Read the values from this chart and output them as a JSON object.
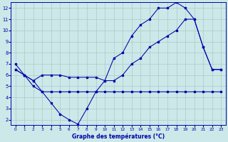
{
  "xlabel": "Graphe des températures (°C)",
  "bg_color": "#cce8e8",
  "grid_color": "#b0c8c8",
  "line_color": "#0000aa",
  "xlim": [
    -0.5,
    23.5
  ],
  "ylim": [
    1.5,
    12.5
  ],
  "xticks": [
    0,
    1,
    2,
    3,
    4,
    5,
    6,
    7,
    8,
    9,
    10,
    11,
    12,
    13,
    14,
    15,
    16,
    17,
    18,
    19,
    20,
    21,
    22,
    23
  ],
  "yticks": [
    2,
    3,
    4,
    5,
    6,
    7,
    8,
    9,
    10,
    11,
    12
  ],
  "curve1_x": [
    0,
    1,
    2,
    3,
    4,
    5,
    6,
    7,
    8,
    9,
    10,
    11,
    12,
    13,
    14,
    15,
    16,
    17,
    18,
    19,
    20,
    21,
    22,
    23
  ],
  "curve1_y": [
    7.0,
    6.0,
    5.0,
    4.5,
    3.5,
    2.5,
    2.0,
    1.6,
    3.0,
    4.5,
    5.5,
    7.5,
    8.0,
    9.5,
    10.5,
    11.0,
    12.0,
    12.0,
    12.5,
    12.0,
    11.0,
    8.5,
    6.5,
    6.5
  ],
  "curve2_x": [
    0,
    1,
    2,
    3,
    4,
    5,
    6,
    7,
    8,
    9,
    10,
    11,
    12,
    13,
    14,
    15,
    16,
    17,
    18,
    19,
    20,
    21,
    22,
    23
  ],
  "curve2_y": [
    6.5,
    6.0,
    5.5,
    6.0,
    6.0,
    6.0,
    5.8,
    5.8,
    5.8,
    5.8,
    5.5,
    5.5,
    6.0,
    7.0,
    7.5,
    8.5,
    9.0,
    9.5,
    10.0,
    11.0,
    11.0,
    8.5,
    6.5,
    6.5
  ],
  "curve3_x": [
    0,
    1,
    2,
    3,
    4,
    5,
    6,
    7,
    8,
    9,
    10,
    11,
    12,
    13,
    14,
    15,
    16,
    17,
    18,
    19,
    20,
    21,
    22,
    23
  ],
  "curve3_y": [
    6.5,
    6.0,
    5.5,
    4.5,
    4.5,
    4.5,
    4.5,
    4.5,
    4.5,
    4.5,
    4.5,
    4.5,
    4.5,
    4.5,
    4.5,
    4.5,
    4.5,
    4.5,
    4.5,
    4.5,
    4.5,
    4.5,
    4.5,
    4.5
  ]
}
